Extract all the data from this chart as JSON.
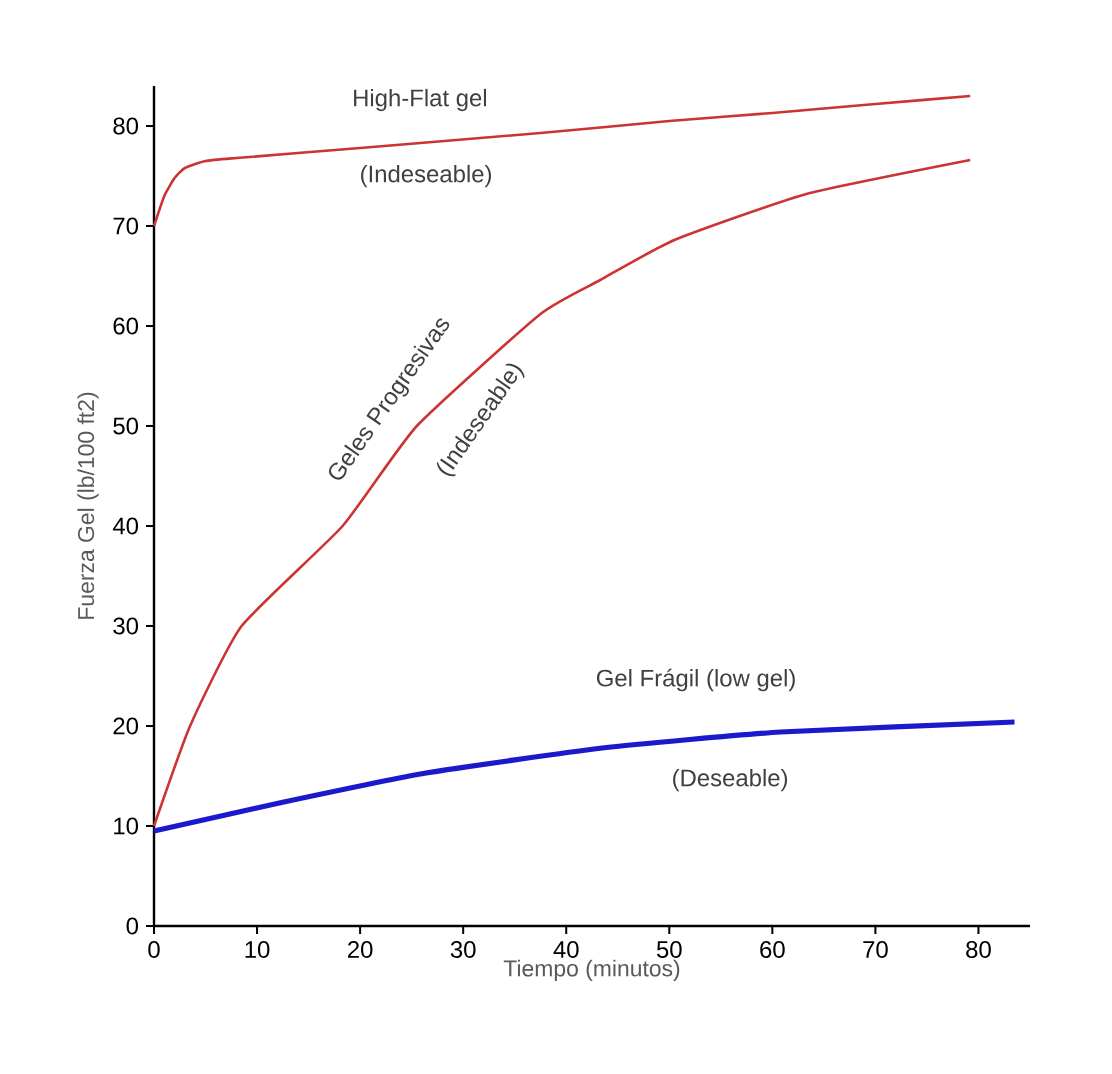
{
  "chart_data": {
    "type": "line",
    "xlabel": "Tiempo (minutos)",
    "ylabel": "Fuerza Gel (lb/100 ft2)",
    "xlim": [
      0,
      85
    ],
    "ylim": [
      0,
      84
    ],
    "xticks": [
      0,
      10,
      20,
      30,
      40,
      50,
      60,
      70,
      80
    ],
    "yticks": [
      0,
      10,
      20,
      30,
      40,
      50,
      60,
      70,
      80
    ],
    "grid": false,
    "legend": false,
    "marker": "none",
    "line_style": "solid",
    "series": [
      {
        "name": "High-Flat gel",
        "color": "#cc3333",
        "x": [
          0,
          1,
          2,
          3,
          5,
          8,
          20,
          37.5,
          50,
          60,
          70,
          79.2
        ],
        "values": [
          70,
          73,
          74.8,
          75.8,
          76.5,
          76.8,
          77.8,
          79.3,
          80.5,
          81.3,
          82.2,
          83
        ]
      },
      {
        "name": "Geles Progresivas",
        "color": "#cc3333",
        "x": [
          0,
          3.5,
          8.5,
          18.3,
          25.5,
          37.5,
          43.3,
          50.5,
          63.3,
          79.2
        ],
        "values": [
          10,
          20,
          30,
          40,
          50,
          61.2,
          64.6,
          68.6,
          73.2,
          76.6
        ]
      },
      {
        "name": "Gel Frágil (low gel)",
        "color": "#1a1acc",
        "x": [
          0,
          12.6,
          26.4,
          43.5,
          60.8,
          83.5
        ],
        "values": [
          9.5,
          12.4,
          15.3,
          17.8,
          19.4,
          20.4
        ]
      }
    ],
    "annotations": [
      "(Indeseable)",
      "(Indeseable)",
      "(Deseable)"
    ]
  }
}
